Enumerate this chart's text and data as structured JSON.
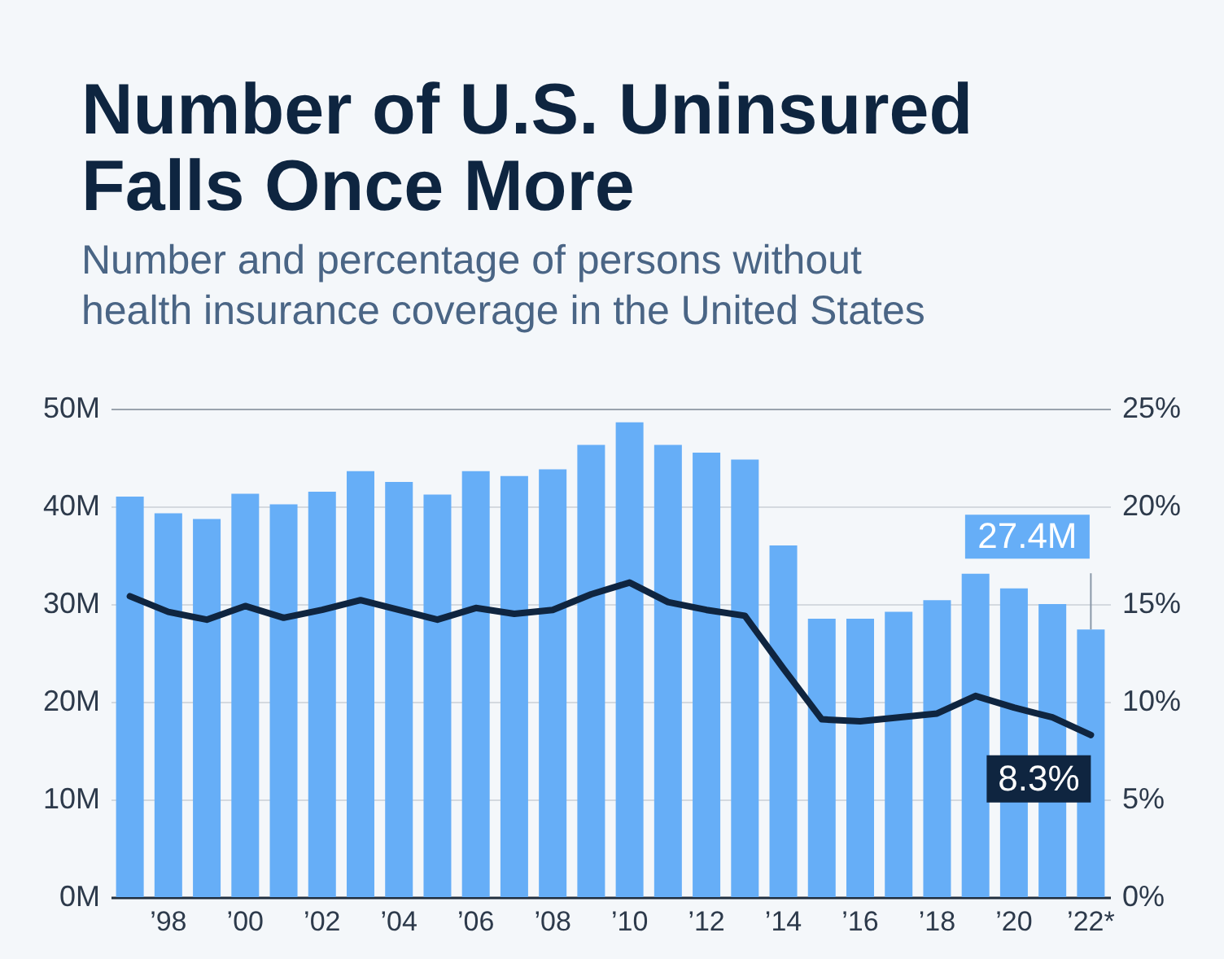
{
  "chart_data": {
    "type": "bar",
    "title": "Number of U.S. Uninsured Falls Once More",
    "subtitle": "Number and percentage of persons without health insurance coverage in the United States",
    "categories": [
      null,
      "’98",
      null,
      "’00",
      null,
      "’02",
      null,
      "’04",
      null,
      "’06",
      null,
      "’08",
      null,
      "’10",
      null,
      "’12",
      null,
      "’14",
      null,
      "’16",
      null,
      "’18",
      null,
      "’20",
      null,
      "’22*"
    ],
    "series": [
      {
        "color": "#66aef7",
        "values": [
          41.0,
          39.3,
          38.7,
          41.3,
          40.2,
          41.5,
          43.6,
          42.5,
          41.2,
          43.6,
          43.1,
          43.8,
          46.3,
          48.6,
          46.3,
          45.5,
          44.8,
          36.0,
          28.5,
          28.5,
          29.2,
          30.4,
          33.1,
          31.6,
          30.0,
          27.4
        ],
        "value_labels": [
          null,
          null,
          null,
          null,
          null,
          null,
          null,
          null,
          null,
          null,
          null,
          null,
          null,
          null,
          null,
          null,
          null,
          null,
          null,
          null,
          null,
          null,
          null,
          null,
          null,
          "27.4M"
        ]
      },
      {
        "type": "line",
        "axis": "y2",
        "color": "#0f2540",
        "values": [
          15.4,
          14.6,
          14.2,
          14.9,
          14.3,
          14.7,
          15.2,
          14.7,
          14.2,
          14.8,
          14.5,
          14.7,
          15.5,
          16.1,
          15.1,
          14.7,
          14.4,
          11.7,
          9.1,
          9.0,
          9.2,
          9.4,
          10.3,
          9.7,
          9.2,
          8.3
        ],
        "value_labels": [
          null,
          null,
          null,
          null,
          null,
          null,
          null,
          null,
          null,
          null,
          null,
          null,
          null,
          null,
          null,
          null,
          null,
          null,
          null,
          null,
          null,
          null,
          null,
          null,
          null,
          "8.3%"
        ]
      }
    ],
    "ylim": [
      0,
      50
    ],
    "yticks": [
      {
        "value": 0,
        "label": "0M"
      },
      {
        "value": 10,
        "label": "10M"
      },
      {
        "value": 20,
        "label": "20M"
      },
      {
        "value": 30,
        "label": "30M"
      },
      {
        "value": 40,
        "label": "40M"
      },
      {
        "value": 50,
        "label": "50M"
      }
    ],
    "y2lim": [
      0,
      25
    ],
    "y2ticks": [
      {
        "value": 0,
        "label": "0%"
      },
      {
        "value": 5,
        "label": "5%"
      },
      {
        "value": 10,
        "label": "10%"
      },
      {
        "value": 15,
        "label": "15%"
      },
      {
        "value": 20,
        "label": "20%"
      },
      {
        "value": 25,
        "label": "25%"
      }
    ],
    "grid": "y"
  }
}
